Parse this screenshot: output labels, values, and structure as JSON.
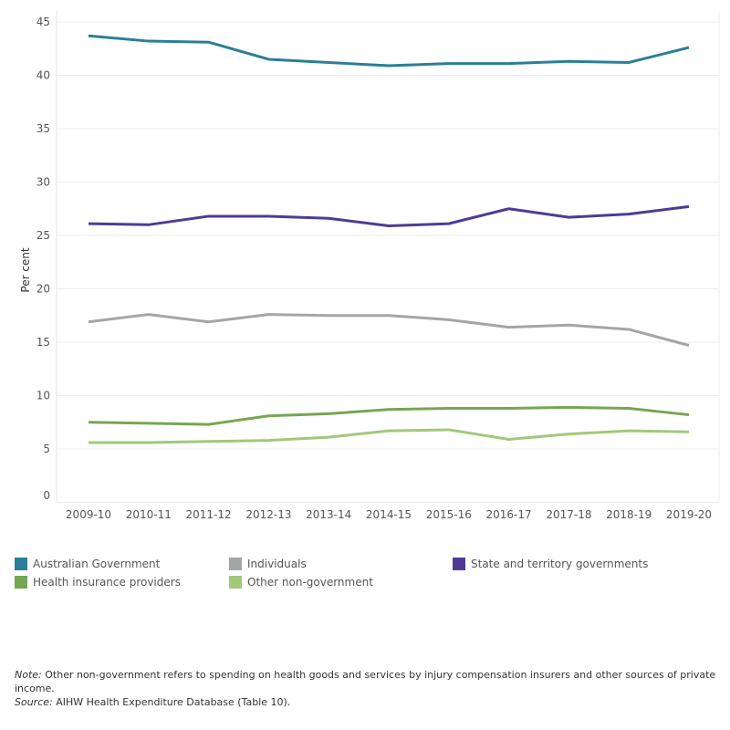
{
  "chart_data": {
    "type": "line",
    "ylabel": "Per cent",
    "xlabel": "",
    "ylim": [
      0,
      45
    ],
    "yticks": [
      0,
      5,
      10,
      15,
      20,
      25,
      30,
      35,
      40,
      45
    ],
    "grid": true,
    "legend_position": "bottom",
    "categories": [
      "2009-10",
      "2010-11",
      "2011-12",
      "2012-13",
      "2013-14",
      "2014-15",
      "2015-16",
      "2016-17",
      "2017-18",
      "2018-19",
      "2019-20"
    ],
    "series": [
      {
        "name": "Australian Government",
        "color": "#2b7f96",
        "values": [
          43.7,
          43.2,
          43.1,
          41.5,
          41.2,
          40.9,
          41.1,
          41.1,
          41.3,
          41.2,
          42.6
        ]
      },
      {
        "name": "Individuals",
        "color": "#a3a6a8",
        "values": [
          16.9,
          17.6,
          16.9,
          17.6,
          17.5,
          17.5,
          17.1,
          16.4,
          16.6,
          16.2,
          14.7
        ]
      },
      {
        "name": "State and territory governments",
        "color": "#4f3b95",
        "values": [
          26.1,
          26.0,
          26.8,
          26.8,
          26.6,
          25.9,
          26.1,
          27.5,
          26.7,
          27.0,
          27.7
        ]
      },
      {
        "name": "Health insurance providers",
        "color": "#76a654",
        "values": [
          7.5,
          7.4,
          7.3,
          8.1,
          8.3,
          8.7,
          8.8,
          8.8,
          8.9,
          8.8,
          8.2
        ]
      },
      {
        "name": "Other non-government",
        "color": "#a1c97a",
        "values": [
          5.6,
          5.6,
          5.7,
          5.8,
          6.1,
          6.7,
          6.8,
          5.9,
          6.4,
          6.7,
          6.6
        ]
      }
    ]
  },
  "notes": {
    "note_label": "Note:",
    "note_text": " Other non-government refers to spending on health goods and services by injury compensation insurers and other sources of private income.",
    "source_label": "Source:",
    "source_text": " AIHW Health Expenditure Database (Table 10)."
  }
}
